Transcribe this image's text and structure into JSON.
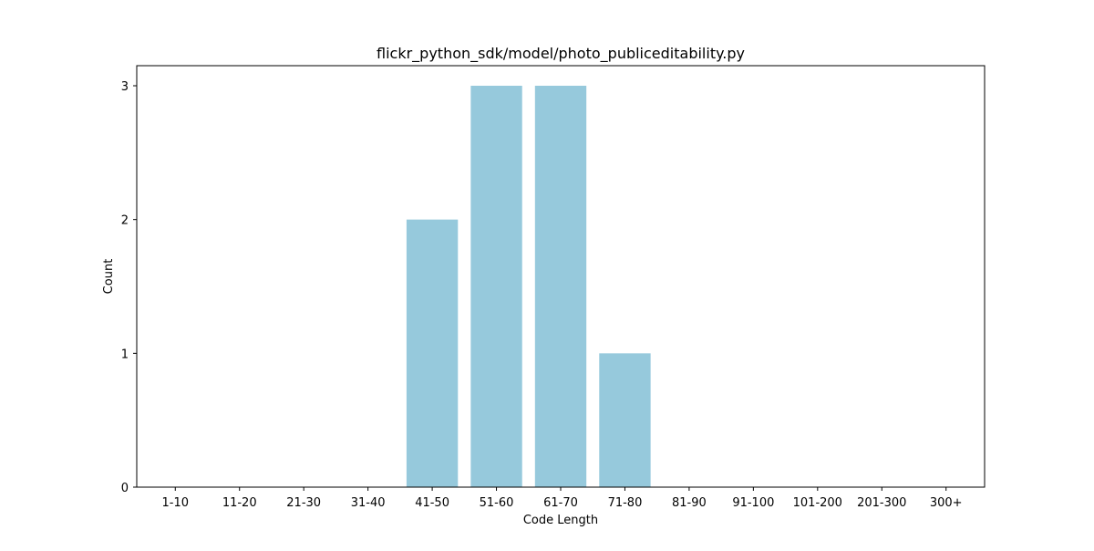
{
  "chart_data": {
    "type": "bar",
    "title": "flickr_python_sdk/model/photo_publiceditability.py",
    "xlabel": "Code Length",
    "ylabel": "Count",
    "categories": [
      "1-10",
      "11-20",
      "21-30",
      "31-40",
      "41-50",
      "51-60",
      "61-70",
      "71-80",
      "81-90",
      "91-100",
      "101-200",
      "201-300",
      "300+"
    ],
    "values": [
      0,
      0,
      0,
      0,
      2,
      3,
      3,
      1,
      0,
      0,
      0,
      0,
      0
    ],
    "ylim": [
      0,
      3.15
    ],
    "yticks": [
      0,
      1,
      2,
      3
    ],
    "grid": false,
    "bar_color": "#96c9dc"
  }
}
